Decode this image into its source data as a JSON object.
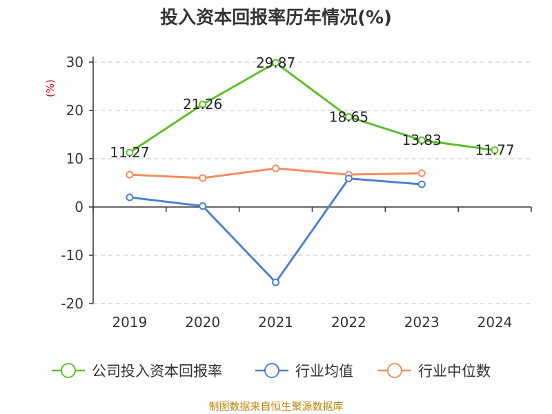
{
  "chart_data": {
    "type": "line",
    "title": "投入资本回报率历年情况(%)",
    "ylabel": "(%)",
    "ylim": [
      -20,
      30
    ],
    "yticks": [
      30,
      20,
      10,
      0,
      -10,
      -20
    ],
    "categories": [
      "2019",
      "2020",
      "2021",
      "2022",
      "2023",
      "2024"
    ],
    "grid": true,
    "legend_position": "bottom",
    "series": [
      {
        "name": "公司投入资本回报率",
        "color": "#5cbf2a",
        "values": [
          11.27,
          21.26,
          29.87,
          18.65,
          13.83,
          11.77
        ],
        "labels": [
          "11.27",
          "21.26",
          "29.87",
          "18.65",
          "13.83",
          "11.77"
        ]
      },
      {
        "name": "行业均值",
        "color": "#4a7fd6",
        "values": [
          2.0,
          0.2,
          -15.6,
          5.9,
          4.7,
          null
        ]
      },
      {
        "name": "行业中位数",
        "color": "#f58b5e",
        "values": [
          6.7,
          6.0,
          8.0,
          6.7,
          7.0,
          null
        ]
      }
    ],
    "source": "制图数据来自恒生聚源数据库"
  }
}
